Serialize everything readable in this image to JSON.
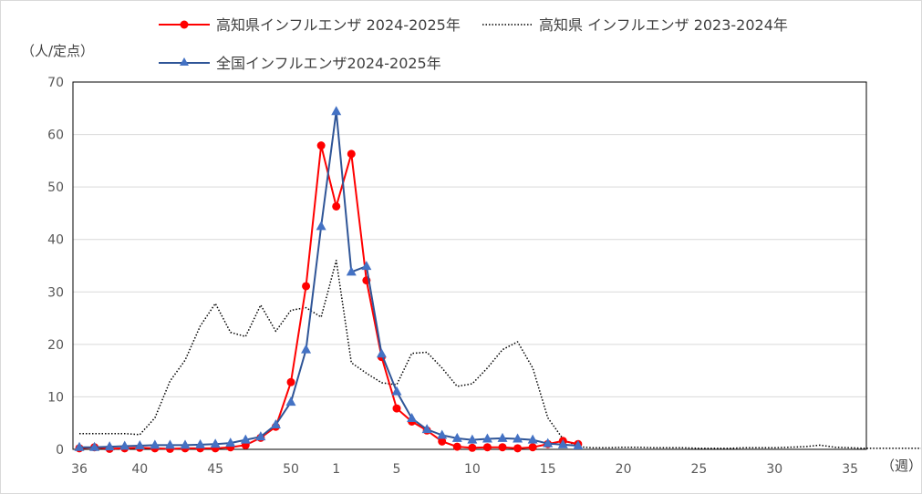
{
  "chart_data": {
    "type": "line",
    "ylabel": "（人/定点）",
    "xlabel": "（週）",
    "ylim": [
      0,
      70
    ],
    "yticks": [
      0,
      10,
      20,
      30,
      40,
      50,
      60,
      70
    ],
    "xtick_labels": [
      "36",
      "40",
      "45",
      "50",
      "1",
      "5",
      "10",
      "15",
      "20",
      "25",
      "30",
      "35"
    ],
    "grid": "horizontal",
    "legend_position": "top",
    "series": [
      {
        "name": "高知県インフルエンザ 2024-2025年",
        "color": "#ff0000",
        "marker": "circle",
        "line": "solid",
        "values": [
          0.2,
          0.4,
          0.1,
          0.2,
          0.3,
          0.2,
          0.1,
          0.2,
          0.2,
          0.2,
          0.4,
          0.8,
          2.2,
          4.3,
          12.8,
          31.1,
          57.9,
          46.3,
          56.3,
          32.2,
          17.6,
          7.8,
          5.3,
          3.6,
          1.5,
          0.5,
          0.3,
          0.4,
          0.4,
          0.2,
          0.4,
          1.0,
          1.6,
          1.0
        ]
      },
      {
        "name": "高知県 インフルエンザ 2023-2024年",
        "color": "#000000",
        "marker": "none",
        "line": "dotted",
        "values": [
          3.0,
          3.0,
          3.0,
          3.0,
          2.8,
          6.0,
          13.0,
          17.0,
          23.5,
          27.8,
          22.3,
          21.5,
          27.5,
          22.5,
          26.5,
          27.0,
          25.2,
          36.0,
          16.5,
          14.5,
          12.7,
          12.3,
          18.3,
          18.5,
          15.5,
          12.0,
          12.5,
          15.5,
          19.0,
          20.5,
          15.5,
          6.0,
          2.0,
          0.5,
          0.3,
          0.3,
          0.4,
          0.4,
          0.3,
          0.3,
          0.3,
          0.2,
          0.2,
          0.2,
          0.3,
          0.3,
          0.3,
          0.4,
          0.5,
          0.8,
          0.4,
          0.3,
          0.2,
          0.2,
          0.2,
          0.2,
          0.2,
          0.2
        ]
      },
      {
        "name": "全国インフルエンザ2024-2025年",
        "color": "#2f5597",
        "marker_color": "#4472c4",
        "marker": "triangle",
        "line": "solid",
        "values": [
          0.4,
          0.4,
          0.5,
          0.6,
          0.7,
          0.8,
          0.8,
          0.8,
          0.9,
          1.0,
          1.2,
          1.8,
          2.4,
          4.7,
          9.0,
          19.0,
          42.5,
          64.4,
          33.8,
          34.9,
          18.2,
          11.0,
          5.9,
          3.8,
          2.7,
          2.1,
          1.8,
          2.0,
          2.1,
          2.0,
          1.8,
          1.1,
          0.9,
          0.7
        ]
      }
    ]
  }
}
